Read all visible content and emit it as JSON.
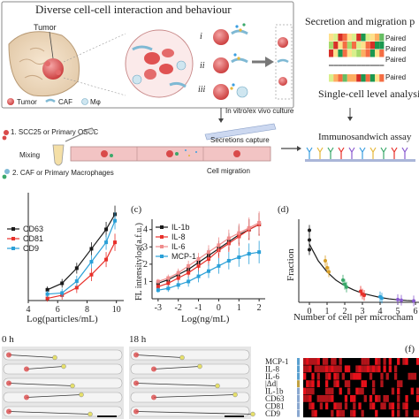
{
  "panel_a": {
    "title": "Diverse cell-cell interaction and behaviour",
    "tumor_label": "Tumor",
    "roman": [
      "i",
      "ii",
      "iii"
    ],
    "legend": [
      "Tumor",
      "CAF",
      "Mφ"
    ]
  },
  "panel_b": {
    "title": "Secretion and migration p",
    "paired_labels": [
      "Paired",
      "Paired",
      "Paired",
      "Paired"
    ],
    "subtitle": "Single-cell level analysis"
  },
  "workflow": {
    "step1": "1. SCC25 or Primary OSCC",
    "step2": "2. CAF or Primary Macrophages",
    "mixing": "Mixing",
    "culture": "In vitro/ex vivo culture",
    "capture": "Secretions capture",
    "migration": "Cell migration",
    "immuno": "Immunosandwich assay"
  },
  "panel_c_label": "(c)",
  "panel_d_label": "(d)",
  "panel_f_label": "(f)",
  "time_labels": [
    "0 h",
    "18 h"
  ],
  "colors": {
    "black": "#1a1a1a",
    "red": "#e8302a",
    "blue": "#2aa0d8",
    "pink": "#f08c8c",
    "dish": "#f2c4c4",
    "tumor": "#d94a4a",
    "tan": "#c8b89a"
  },
  "chart_data": [
    {
      "type": "line",
      "title": "",
      "xlabel": "Log(particles/mL)",
      "ylabel": "",
      "xlim": [
        4,
        10.5
      ],
      "ylim": [
        0,
        5
      ],
      "xticks": [
        "4",
        "6",
        "8",
        "10"
      ],
      "series": [
        {
          "name": "CD63",
          "color": "#1a1a1a",
          "x": [
            5.3,
            6.3,
            7.3,
            8.3,
            9.3,
            9.9
          ],
          "y": [
            0.5,
            0.8,
            1.5,
            2.4,
            3.3,
            4.0
          ]
        },
        {
          "name": "CD81",
          "color": "#e8302a",
          "x": [
            5.3,
            6.3,
            7.3,
            8.3,
            9.3,
            9.9
          ],
          "y": [
            0.1,
            0.25,
            0.6,
            1.2,
            1.9,
            2.7
          ]
        },
        {
          "name": "CD9",
          "color": "#2aa0d8",
          "x": [
            5.3,
            6.3,
            7.3,
            8.3,
            9.3,
            9.9
          ],
          "y": [
            0.3,
            0.35,
            0.9,
            1.8,
            2.7,
            3.7
          ]
        }
      ]
    },
    {
      "type": "line",
      "title": "",
      "xlabel": "Log(ng/mL)",
      "ylabel": "FL intensitylog(a.f.u.)",
      "xlim": [
        -3.3,
        2.3
      ],
      "ylim": [
        0,
        4.6
      ],
      "xticks": [
        "-3",
        "-2",
        "-1",
        "0",
        "1",
        "2"
      ],
      "series": [
        {
          "name": "IL-1b",
          "color": "#1a1a1a",
          "x": [
            -3,
            -2.5,
            -2,
            -1.5,
            -1,
            -0.5,
            0,
            0.5,
            1,
            1.5,
            2
          ],
          "y": [
            0.9,
            1.1,
            1.4,
            1.7,
            2.1,
            2.5,
            2.9,
            3.3,
            3.7,
            4.0,
            4.3
          ]
        },
        {
          "name": "IL-8",
          "color": "#e8302a",
          "x": [
            -3,
            -2.5,
            -2,
            -1.5,
            -1,
            -0.5,
            0,
            0.5,
            1,
            1.5,
            2
          ],
          "y": [
            0.7,
            0.9,
            1.2,
            1.5,
            1.9,
            2.3,
            2.8,
            3.2,
            3.6,
            4.0,
            4.3
          ]
        },
        {
          "name": "IL-6",
          "color": "#f08c8c",
          "x": [
            -3,
            -2.5,
            -2,
            -1.5,
            -1,
            -0.5,
            0,
            0.5,
            1,
            1.5,
            2
          ],
          "y": [
            1.0,
            1.2,
            1.5,
            1.9,
            2.3,
            2.7,
            3.1,
            3.5,
            3.8,
            4.1,
            4.4
          ]
        },
        {
          "name": "MCP-1",
          "color": "#2aa0d8",
          "x": [
            -3,
            -2.5,
            -2,
            -1.5,
            -1,
            -0.5,
            0,
            0.5,
            1,
            1.5,
            2
          ],
          "y": [
            0.5,
            0.6,
            0.8,
            1.0,
            1.3,
            1.6,
            1.9,
            2.2,
            2.4,
            2.6,
            2.7
          ]
        }
      ]
    },
    {
      "type": "scatter",
      "title": "",
      "xlabel": "Number of cell per microcham",
      "ylabel": "Fraction",
      "xlim": [
        -0.6,
        6.2
      ],
      "ylim": [
        0,
        0.6
      ],
      "xticks": [
        "0",
        "1",
        "2",
        "3",
        "4",
        "5",
        "6"
      ],
      "series": [
        {
          "name": "",
          "color": "#1a1a1a",
          "x": [
            0,
            0,
            0,
            0.9,
            1.0,
            1.1,
            1.9,
            2.0,
            2.1,
            2.9,
            3.0,
            3.1,
            4.0,
            4.1,
            5.0,
            5.2,
            5.9
          ],
          "y": [
            0.52,
            0.45,
            0.38,
            0.3,
            0.25,
            0.22,
            0.16,
            0.13,
            0.11,
            0.08,
            0.06,
            0.05,
            0.04,
            0.03,
            0.02,
            0.015,
            0.01
          ]
        },
        {
          "name": "",
          "color": "#1a1a1a",
          "x": [
            0,
            0.5,
            1,
            1.5,
            2,
            2.5,
            3,
            3.5,
            4,
            4.5,
            5,
            5.5,
            6
          ],
          "y": [
            0.42,
            0.3,
            0.22,
            0.16,
            0.12,
            0.09,
            0.065,
            0.05,
            0.035,
            0.025,
            0.018,
            0.013,
            0.01
          ]
        }
      ]
    },
    {
      "type": "heatmap",
      "title": "",
      "rows": [
        "MCP-1",
        "IL-8",
        "IL-6",
        "|Δd|",
        "IL-1b",
        "CD63",
        "CD81",
        "CD9"
      ]
    }
  ]
}
